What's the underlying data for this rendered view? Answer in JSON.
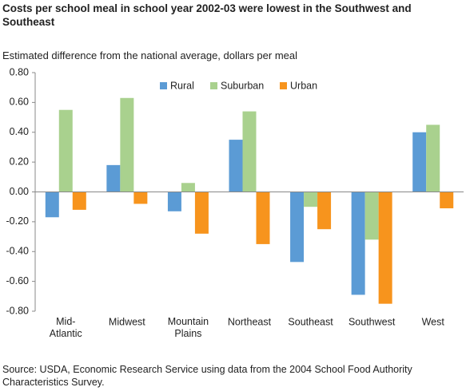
{
  "chart_data": {
    "type": "bar",
    "title": "Costs per school meal in school year 2002-03 were lowest in the Southwest and Southeast",
    "subtitle": "Estimated difference from the national average, dollars per meal",
    "source": "Source: USDA, Economic Research Service using data from the 2004 School Food Authority Characteristics Survey.",
    "categories": [
      "Mid-\nAtlantic",
      "Midwest",
      "Mountain\nPlains",
      "Northeast",
      "Southeast",
      "Southwest",
      "West"
    ],
    "series": [
      {
        "name": "Rural",
        "color": "#5b9bd5",
        "values": [
          -0.17,
          0.18,
          -0.13,
          0.35,
          -0.47,
          -0.69,
          0.4
        ]
      },
      {
        "name": "Suburban",
        "color": "#a9d18e",
        "values": [
          0.55,
          0.63,
          0.06,
          0.54,
          -0.1,
          -0.32,
          0.45
        ]
      },
      {
        "name": "Urban",
        "color": "#f7941d",
        "values": [
          -0.12,
          -0.08,
          -0.28,
          -0.35,
          -0.25,
          -0.75,
          -0.11
        ]
      }
    ],
    "ylim": [
      -0.8,
      0.8
    ],
    "yticks": [
      {
        "value": 0.8,
        "label": "0.80"
      },
      {
        "value": 0.6,
        "label": "0.60"
      },
      {
        "value": 0.4,
        "label": "0.40"
      },
      {
        "value": 0.2,
        "label": "0.20"
      },
      {
        "value": 0,
        "label": "0.00"
      },
      {
        "value": -0.2,
        "label": "-0.20"
      },
      {
        "value": -0.4,
        "label": "-0.40"
      },
      {
        "value": -0.6,
        "label": "-0.60"
      },
      {
        "value": -0.8,
        "label": "-0.80"
      }
    ],
    "legend": "top"
  }
}
